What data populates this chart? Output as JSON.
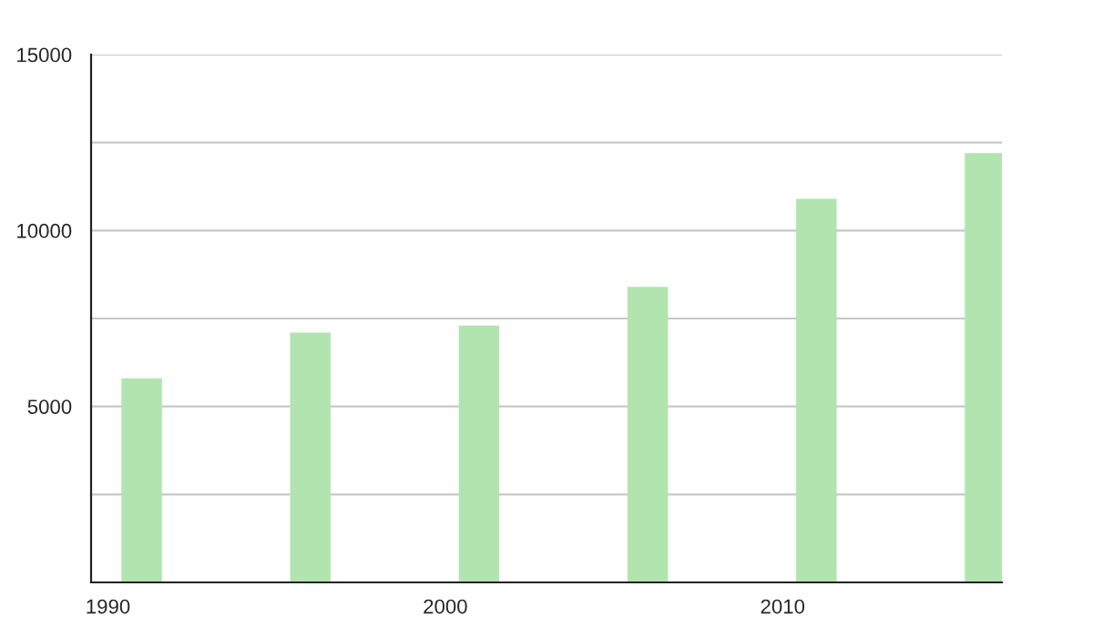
{
  "chart_data": {
    "type": "bar",
    "x": [
      1991,
      1996,
      2001,
      2006,
      2011,
      2016
    ],
    "values": [
      5800,
      7100,
      7300,
      8400,
      10900,
      12200
    ],
    "color": "#b2e4af",
    "xlim": [
      1989.5,
      2016.5
    ],
    "xticks": [
      1990,
      2000,
      2010
    ],
    "ylim": [
      0,
      15000
    ],
    "yticks": [
      {
        "value": 2500,
        "label": null
      },
      5000,
      {
        "value": 7500,
        "label": null
      },
      10000,
      {
        "value": 12500,
        "label": null
      },
      15000
    ],
    "grid": "y"
  }
}
